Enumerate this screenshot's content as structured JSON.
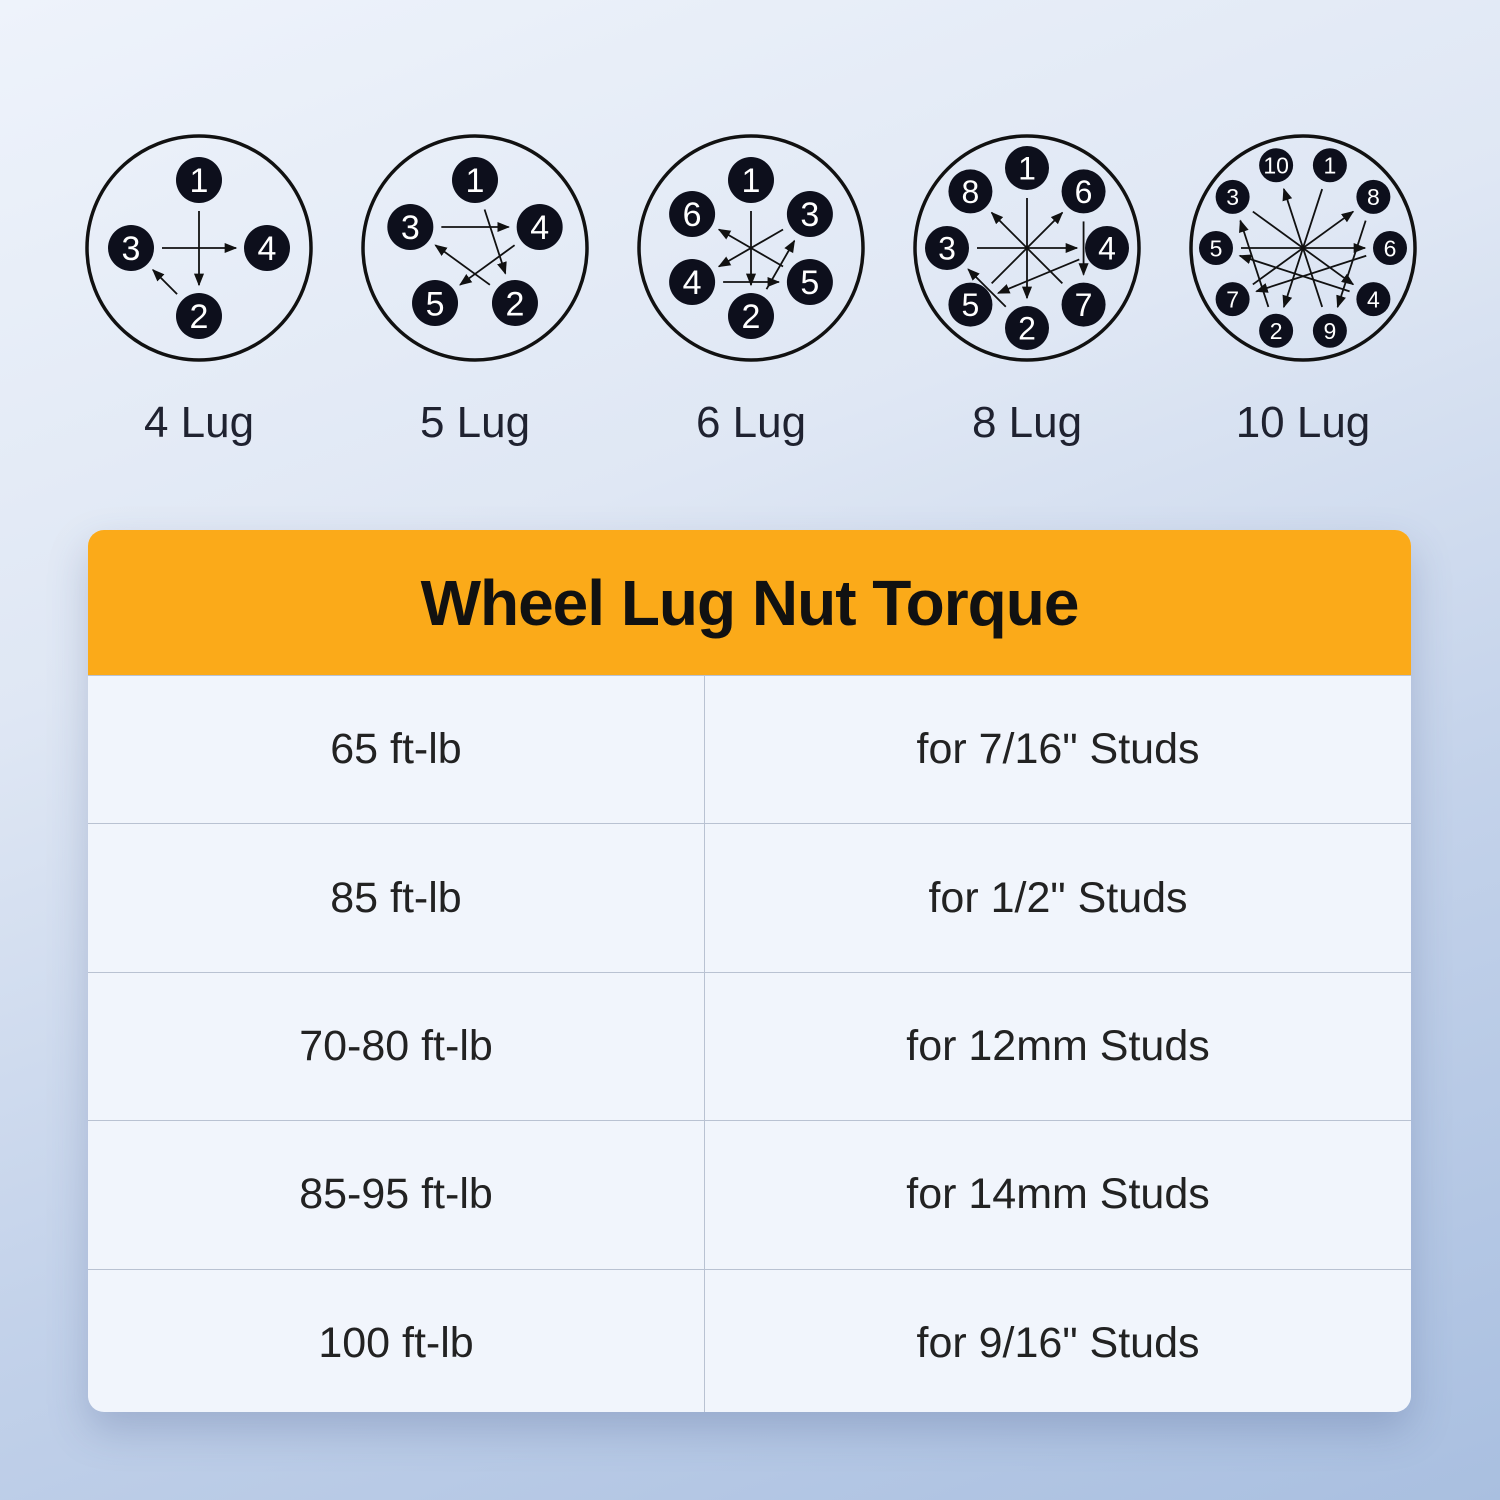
{
  "patterns": [
    {
      "label": "4 Lug",
      "order": [
        1,
        4,
        2,
        3
      ]
    },
    {
      "label": "5 Lug",
      "order": [
        1,
        4,
        2,
        5,
        3
      ]
    },
    {
      "label": "6 Lug",
      "order": [
        1,
        3,
        5,
        2,
        4,
        6
      ]
    },
    {
      "label": "8 Lug",
      "order": [
        1,
        6,
        4,
        7,
        2,
        5,
        3,
        8
      ]
    },
    {
      "label": "10 Lug",
      "order": [
        1,
        8,
        6,
        4,
        9,
        2,
        7,
        5,
        3,
        10
      ]
    }
  ],
  "table": {
    "title": "Wheel Lug Nut Torque",
    "rows": [
      {
        "torque": "65 ft-lb",
        "stud": "for 7/16\" Studs"
      },
      {
        "torque": "85 ft-lb",
        "stud": "for 1/2\" Studs"
      },
      {
        "torque": "70-80 ft-lb",
        "stud": "for 12mm Studs"
      },
      {
        "torque": "85-95 ft-lb",
        "stud": "for 14mm Studs"
      },
      {
        "torque": "100 ft-lb",
        "stud": "for 9/16\" Studs"
      }
    ]
  },
  "colors": {
    "header": "#fbaa19",
    "lug": "#0d0f1c",
    "background": "#dfe7f4"
  }
}
